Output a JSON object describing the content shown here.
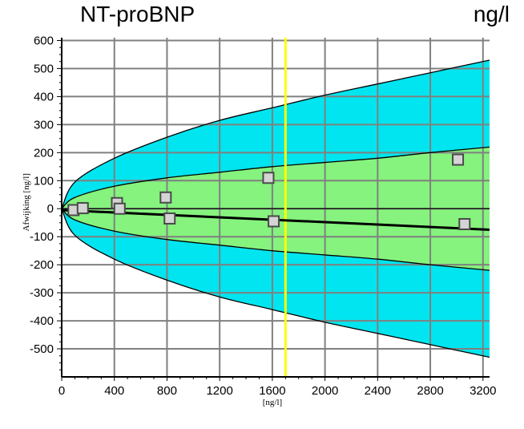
{
  "chart_data": {
    "type": "scatter",
    "title": "NT-proBNP",
    "unit": "ng/l",
    "xlabel": "[ng/l]",
    "ylabel": "Afwijking [ng/l]",
    "xlim": [
      0,
      3250
    ],
    "ylim": [
      -600,
      610
    ],
    "x_ticks": [
      0,
      400,
      800,
      1200,
      1600,
      2000,
      2400,
      2800,
      3200
    ],
    "y_ticks": [
      600,
      500,
      400,
      300,
      200,
      100,
      0,
      -100,
      -200,
      -300,
      -400,
      -500
    ],
    "grid": true,
    "series": [
      {
        "values": [
          {
            "x": 90,
            "y": -5
          },
          {
            "x": 160,
            "y": 2
          },
          {
            "x": 420,
            "y": 20
          },
          {
            "x": 440,
            "y": 0
          },
          {
            "x": 790,
            "y": 40
          },
          {
            "x": 820,
            "y": -35
          },
          {
            "x": 1570,
            "y": 110
          },
          {
            "x": 1610,
            "y": -45
          },
          {
            "x": 3010,
            "y": 175
          },
          {
            "x": 3060,
            "y": -55
          }
        ]
      }
    ],
    "regression": {
      "x": [
        0,
        3250
      ],
      "y": [
        -5,
        -75
      ]
    },
    "vertical_line_x": 1700,
    "bands": {
      "outer_half_width": [
        [
          0,
          0
        ],
        [
          100,
          95
        ],
        [
          400,
          180
        ],
        [
          800,
          255
        ],
        [
          1200,
          315
        ],
        [
          1600,
          360
        ],
        [
          2000,
          405
        ],
        [
          2400,
          445
        ],
        [
          2800,
          485
        ],
        [
          3250,
          530
        ]
      ],
      "inner_half_width": [
        [
          0,
          0
        ],
        [
          100,
          40
        ],
        [
          400,
          80
        ],
        [
          800,
          110
        ],
        [
          1200,
          130
        ],
        [
          1600,
          150
        ],
        [
          2000,
          165
        ],
        [
          2400,
          180
        ],
        [
          2800,
          200
        ],
        [
          3250,
          220
        ]
      ]
    },
    "colors": {
      "outer_band": "#00e5ef",
      "inner_band": "#85f37d",
      "vertical_line": "#ffff00",
      "regression": "#000000",
      "grid": "#808080",
      "marker_fill": "#d4d4d4",
      "marker_stroke": "#4a4a4a"
    }
  }
}
